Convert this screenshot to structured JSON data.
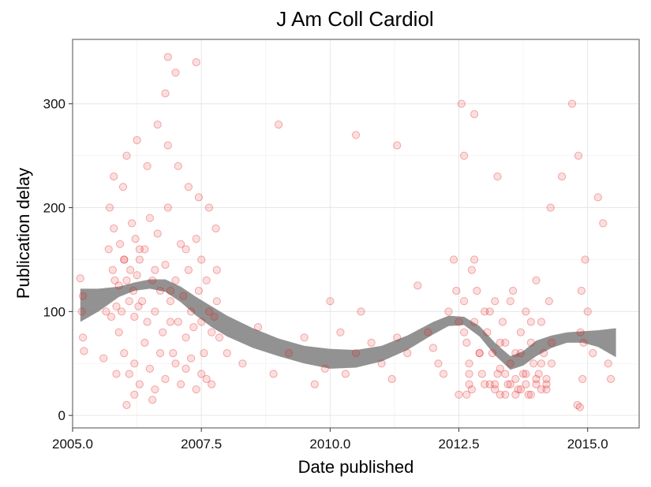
{
  "chart_data": {
    "type": "scatter",
    "title": "J Am Coll Cardiol",
    "xlabel": "Date published",
    "ylabel": "Publication delay",
    "xlim": [
      2005.0,
      2016.0
    ],
    "ylim": [
      -12,
      362
    ],
    "x_ticks": [
      2005.0,
      2007.5,
      2010.0,
      2012.5,
      2015.0
    ],
    "x_tick_labels": [
      "2005.0",
      "2007.5",
      "2010.0",
      "2012.5",
      "2015.0"
    ],
    "y_ticks": [
      0,
      100,
      200,
      300
    ],
    "y_tick_labels": [
      "0",
      "100",
      "200",
      "300"
    ],
    "grid": true,
    "point_color": "#e31a1c",
    "band_color": "#7f7f7f",
    "series": [
      {
        "points_x": [
          2005.15,
          2005.18,
          2005.2,
          2005.22,
          2005.2,
          2005.6,
          2005.65,
          2005.7,
          2005.72,
          2005.75,
          2005.78,
          2005.8,
          2005.82,
          2005.85,
          2005.9,
          2005.92,
          2005.95,
          2005.98,
          2006.0,
          2006.05,
          2006.1,
          2006.12,
          2006.15,
          2006.18,
          2006.2,
          2006.22,
          2006.25,
          2006.28,
          2006.3,
          2006.35,
          2006.4,
          2006.45,
          2006.5,
          2006.55,
          2006.6,
          2006.65,
          2006.7,
          2006.75,
          2006.8,
          2006.85,
          2006.9,
          2006.95,
          2007.0,
          2007.05,
          2007.1,
          2007.15,
          2007.2,
          2007.25,
          2007.3,
          2007.35,
          2007.4,
          2007.45,
          2007.5,
          2007.55,
          2007.6,
          2007.65,
          2007.7,
          2007.75,
          2007.8,
          2007.85,
          2005.85,
          2005.9,
          2006.0,
          2006.1,
          2006.2,
          2006.3,
          2006.4,
          2006.5,
          2006.6,
          2006.7,
          2006.8,
          2006.9,
          2007.0,
          2007.1,
          2007.2,
          2007.3,
          2007.4,
          2007.5,
          2007.6,
          2007.7,
          2005.8,
          2006.05,
          2006.25,
          2006.45,
          2006.65,
          2006.85,
          2007.05,
          2007.25,
          2007.45,
          2007.65,
          2007.78,
          2006.0,
          2006.3,
          2006.6,
          2006.9,
          2007.2,
          2007.5,
          2007.8,
          2008.0,
          2008.3,
          2008.6,
          2008.9,
          2009.2,
          2009.5,
          2009.7,
          2009.9,
          2010.0,
          2010.2,
          2010.3,
          2010.5,
          2010.6,
          2010.8,
          2011.0,
          2011.2,
          2011.3,
          2011.5,
          2011.7,
          2011.9,
          2012.0,
          2012.1,
          2012.2,
          2012.3,
          2012.4,
          2012.45,
          2012.5,
          2012.55,
          2012.6,
          2012.65,
          2012.7,
          2012.75,
          2012.8,
          2012.85,
          2012.9,
          2012.95,
          2013.0,
          2013.05,
          2013.1,
          2013.15,
          2013.2,
          2013.25,
          2013.3,
          2013.35,
          2013.4,
          2013.45,
          2013.5,
          2013.55,
          2013.6,
          2013.65,
          2013.7,
          2013.75,
          2013.8,
          2013.85,
          2013.9,
          2013.95,
          2014.0,
          2014.05,
          2014.1,
          2014.15,
          2014.2,
          2014.25,
          2014.3,
          2012.5,
          2012.6,
          2012.7,
          2012.8,
          2012.9,
          2013.0,
          2013.1,
          2013.2,
          2013.3,
          2013.4,
          2013.5,
          2013.6,
          2013.7,
          2013.8,
          2013.9,
          2014.0,
          2014.1,
          2014.2,
          2014.3,
          2013.2,
          2013.3,
          2013.4,
          2013.5,
          2013.6,
          2013.7,
          2013.8,
          2013.9,
          2014.0,
          2014.1,
          2014.2,
          2012.65,
          2012.7,
          2012.75,
          2012.8,
          2012.6,
          2013.25,
          2014.28,
          2014.5,
          2014.7,
          2014.8,
          2014.85,
          2014.9,
          2014.95,
          2015.0,
          2014.82,
          2014.88,
          2014.92,
          2014.86,
          2015.1,
          2015.2,
          2015.3,
          2015.4,
          2015.45,
          2006.05,
          2006.2,
          2006.55,
          2006.8,
          2006.85,
          2007.0,
          2007.4,
          2009.0,
          2010.5,
          2011.3
        ],
        "points_y": [
          132,
          100,
          75,
          62,
          115,
          55,
          100,
          160,
          200,
          95,
          140,
          180,
          130,
          105,
          125,
          165,
          100,
          220,
          150,
          130,
          110,
          140,
          185,
          120,
          95,
          170,
          135,
          105,
          150,
          110,
          160,
          90,
          190,
          130,
          100,
          175,
          120,
          80,
          145,
          200,
          110,
          60,
          130,
          90,
          165,
          115,
          75,
          140,
          100,
          85,
          170,
          120,
          90,
          60,
          130,
          100,
          80,
          95,
          110,
          75,
          40,
          80,
          60,
          40,
          50,
          30,
          70,
          45,
          25,
          60,
          35,
          90,
          50,
          30,
          45,
          55,
          25,
          40,
          35,
          30,
          230,
          250,
          265,
          240,
          280,
          260,
          240,
          220,
          210,
          200,
          180,
          150,
          160,
          140,
          120,
          160,
          150,
          140,
          60,
          50,
          85,
          40,
          60,
          75,
          30,
          45,
          110,
          80,
          40,
          60,
          100,
          70,
          50,
          35,
          75,
          60,
          125,
          80,
          65,
          50,
          40,
          100,
          150,
          120,
          90,
          300,
          110,
          70,
          50,
          140,
          90,
          120,
          60,
          40,
          100,
          80,
          30,
          60,
          110,
          40,
          20,
          90,
          70,
          30,
          50,
          120,
          60,
          25,
          80,
          40,
          100,
          20,
          70,
          50,
          130,
          40,
          90,
          60,
          30,
          110,
          50,
          20,
          80,
          40,
          150,
          60,
          30,
          100,
          25,
          70,
          40,
          110,
          20,
          60,
          30,
          90,
          35,
          50,
          25,
          70,
          30,
          45,
          20,
          30,
          35,
          25,
          40,
          20,
          30,
          25,
          35,
          20,
          30,
          25,
          290,
          250,
          230,
          200,
          230,
          300,
          10,
          8,
          35,
          150,
          100,
          250,
          120,
          70,
          80,
          60,
          210,
          185,
          50,
          35,
          10,
          20,
          15,
          310,
          345,
          330,
          340,
          280,
          270,
          260,
          175,
          225,
          165
        ]
      }
    ],
    "smooth": {
      "x": [
        2005.15,
        2005.5,
        2005.9,
        2006.2,
        2006.5,
        2006.8,
        2007.1,
        2007.4,
        2007.7,
        2008.0,
        2008.5,
        2009.0,
        2009.5,
        2010.0,
        2010.5,
        2011.0,
        2011.5,
        2012.0,
        2012.3,
        2012.6,
        2012.9,
        2013.2,
        2013.5,
        2013.75,
        2014.0,
        2014.3,
        2014.6,
        2014.9,
        2015.2,
        2015.55
      ],
      "lower": [
        90,
        100,
        114,
        120,
        122,
        119,
        109,
        96,
        85,
        76,
        65,
        57,
        50,
        45,
        46,
        52,
        63,
        78,
        86,
        87,
        76,
        58,
        44,
        48,
        57,
        65,
        70,
        70,
        66,
        56
      ],
      "upper": [
        122,
        122,
        124,
        128,
        131,
        131,
        124,
        114,
        105,
        96,
        84,
        74,
        67,
        64,
        63,
        67,
        77,
        90,
        96,
        95,
        86,
        70,
        57,
        62,
        72,
        77,
        80,
        81,
        82,
        84
      ]
    }
  }
}
